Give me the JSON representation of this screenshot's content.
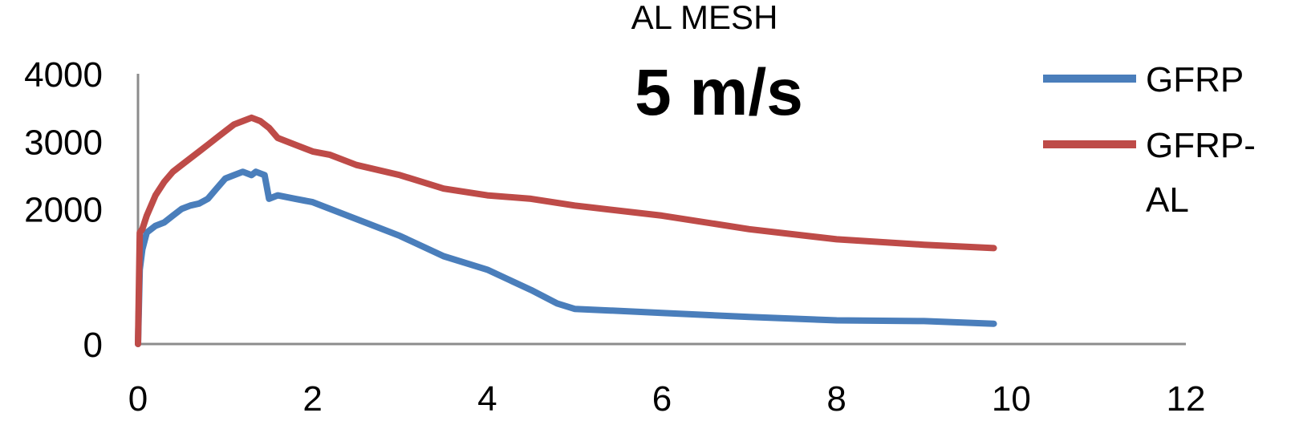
{
  "chart_data": {
    "type": "line",
    "title": "5 m/s",
    "subtitle": "AL MESH",
    "xlabel": "",
    "ylabel": "",
    "xlim": [
      0,
      12
    ],
    "ylim": [
      0,
      4000
    ],
    "x_ticks": [
      "0",
      "2",
      "4",
      "6",
      "8",
      "10",
      "12"
    ],
    "y_ticks": [
      "0",
      "2000",
      "3000",
      "4000"
    ],
    "legend_position": "right",
    "series": [
      {
        "name": "GFRP",
        "color": "#4a7ebb",
        "x": [
          0.0,
          0.02,
          0.05,
          0.1,
          0.2,
          0.3,
          0.4,
          0.5,
          0.6,
          0.7,
          0.8,
          0.9,
          1.0,
          1.1,
          1.2,
          1.3,
          1.35,
          1.45,
          1.5,
          1.6,
          1.8,
          2.0,
          2.2,
          2.5,
          3.0,
          3.5,
          4.0,
          4.5,
          4.8,
          5.0,
          6.0,
          7.0,
          8.0,
          9.0,
          9.8
        ],
        "y": [
          0,
          1100,
          1400,
          1650,
          1750,
          1800,
          1900,
          2000,
          2050,
          2080,
          2150,
          2300,
          2450,
          2500,
          2550,
          2500,
          2550,
          2500,
          2150,
          2200,
          2150,
          2100,
          2000,
          1850,
          1600,
          1300,
          1100,
          800,
          600,
          520,
          460,
          400,
          350,
          340,
          300
        ]
      },
      {
        "name": "GFRP-AL",
        "color": "#be4b48",
        "x": [
          0.0,
          0.02,
          0.05,
          0.1,
          0.2,
          0.3,
          0.4,
          0.5,
          0.6,
          0.7,
          0.8,
          0.9,
          1.0,
          1.1,
          1.2,
          1.3,
          1.4,
          1.5,
          1.6,
          1.8,
          2.0,
          2.2,
          2.5,
          3.0,
          3.5,
          4.0,
          4.5,
          5.0,
          6.0,
          7.0,
          8.0,
          9.0,
          9.8
        ],
        "y": [
          0,
          1650,
          1700,
          1900,
          2200,
          2400,
          2550,
          2650,
          2750,
          2850,
          2950,
          3050,
          3150,
          3250,
          3300,
          3350,
          3300,
          3200,
          3050,
          2950,
          2850,
          2800,
          2650,
          2500,
          2300,
          2200,
          2150,
          2050,
          1900,
          1700,
          1550,
          1470,
          1420
        ]
      }
    ]
  },
  "legend": {
    "items": [
      {
        "label_line1": "GFRP",
        "label_line2": "",
        "color": "#4a7ebb"
      },
      {
        "label_line1": "GFRP-",
        "label_line2": "AL",
        "color": "#be4b48"
      }
    ]
  }
}
